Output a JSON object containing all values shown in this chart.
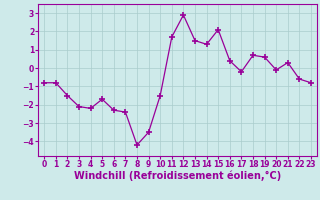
{
  "x": [
    0,
    1,
    2,
    3,
    4,
    5,
    6,
    7,
    8,
    9,
    10,
    11,
    12,
    13,
    14,
    15,
    16,
    17,
    18,
    19,
    20,
    21,
    22,
    23
  ],
  "y": [
    -0.8,
    -0.8,
    -1.5,
    -2.1,
    -2.2,
    -1.7,
    -2.3,
    -2.4,
    -4.2,
    -3.5,
    -1.5,
    1.7,
    2.9,
    1.5,
    1.3,
    2.1,
    0.4,
    -0.2,
    0.7,
    0.6,
    -0.1,
    0.3,
    -0.6,
    -0.8
  ],
  "line_color": "#990099",
  "marker": "+",
  "marker_size": 4,
  "marker_lw": 1.2,
  "line_width": 0.9,
  "bg_color": "#ceeaea",
  "grid_color": "#aacccc",
  "xlabel": "Windchill (Refroidissement éolien,°C)",
  "xlabel_color": "#990099",
  "ylim": [
    -4.8,
    3.5
  ],
  "yticks": [
    -4,
    -3,
    -2,
    -1,
    0,
    1,
    2,
    3
  ],
  "xticks": [
    0,
    1,
    2,
    3,
    4,
    5,
    6,
    7,
    8,
    9,
    10,
    11,
    12,
    13,
    14,
    15,
    16,
    17,
    18,
    19,
    20,
    21,
    22,
    23
  ],
  "tick_color": "#990099",
  "tick_fontsize": 5.5,
  "xlabel_fontsize": 7.0,
  "spine_color": "#990099"
}
